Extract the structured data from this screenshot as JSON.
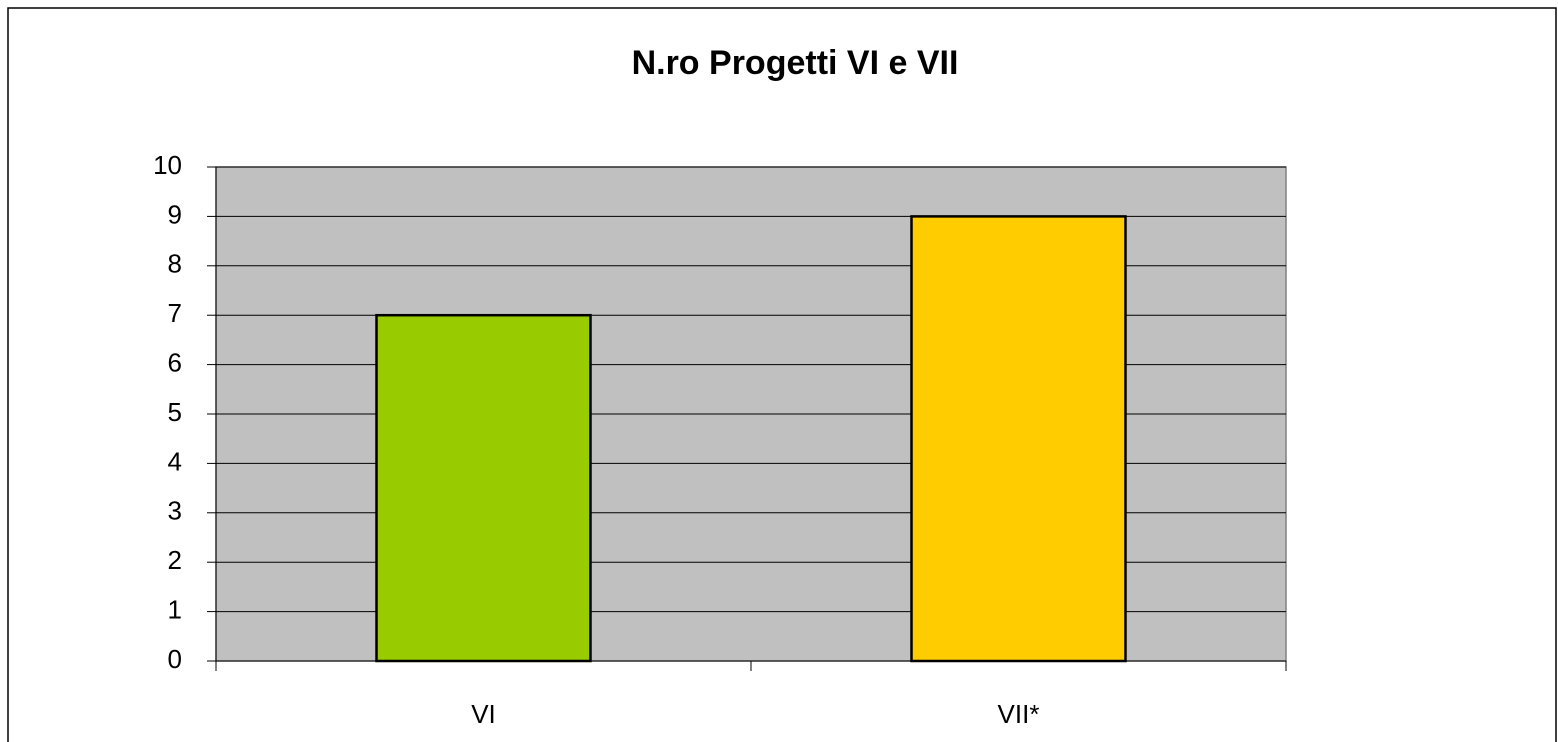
{
  "chart_data": {
    "type": "bar",
    "title": "N.ro Progetti VI e VII",
    "categories": [
      "VI",
      "VII*"
    ],
    "values": [
      7,
      9
    ],
    "colors": [
      "#99cc00",
      "#ffcc00"
    ],
    "ylim": [
      0,
      10
    ],
    "yticks": [
      0,
      1,
      2,
      3,
      4,
      5,
      6,
      7,
      8,
      9,
      10
    ],
    "grid": true
  }
}
